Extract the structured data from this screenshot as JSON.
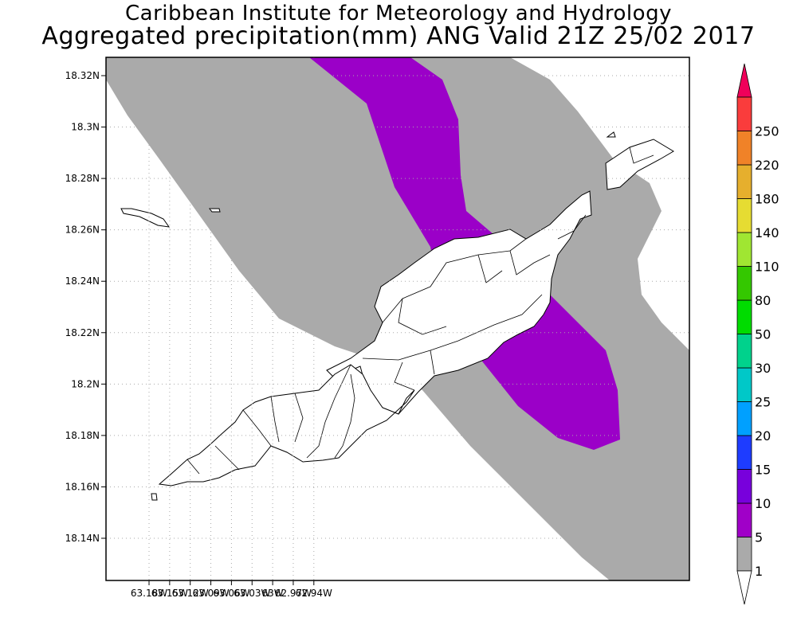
{
  "header": {
    "line1": "Caribbean Institute for Meteorology and Hydrology",
    "line2": "Aggregated precipitation(mm) ANG Valid 21Z 25/02 2017"
  },
  "map": {
    "lat_labels": [
      "18.32N",
      "18.3N",
      "18.28N",
      "18.26N",
      "18.24N",
      "18.22N",
      "18.2N",
      "18.18N",
      "18.16N",
      "18.14N"
    ],
    "lon_labels": [
      "63.18W",
      "63.15W",
      "63.12W",
      "63.09W",
      "63.06W",
      "63.03W",
      "63W",
      "62.97W",
      "62.94W"
    ],
    "lat_values": [
      18.32,
      18.3,
      18.28,
      18.26,
      18.24,
      18.22,
      18.2,
      18.18,
      18.16,
      18.14
    ],
    "lon_values": [
      -63.18,
      -63.15,
      -63.12,
      -63.09,
      -63.06,
      -63.03,
      -63.0,
      -62.97,
      -62.94
    ],
    "grid": "dotted",
    "shaded_levels": [
      {
        "range": "1-5",
        "color": "#aaaaaa"
      },
      {
        "range": "5-10",
        "color": "#9b00c8"
      }
    ]
  },
  "colorbar": {
    "labels": [
      "1",
      "5",
      "10",
      "15",
      "20",
      "25",
      "30",
      "50",
      "80",
      "110",
      "140",
      "180",
      "220",
      "250"
    ],
    "colors": [
      "#aaaaaa",
      "#a000c8",
      "#7800dc",
      "#1e3cff",
      "#00a0ff",
      "#00c8c8",
      "#00d28c",
      "#00dc00",
      "#34c800",
      "#a0e632",
      "#e6dc32",
      "#e6af2d",
      "#f08228",
      "#fa3c3c"
    ],
    "top_arrow_color": "#f0005a",
    "bottom_arrow_color": "#ffffff"
  }
}
